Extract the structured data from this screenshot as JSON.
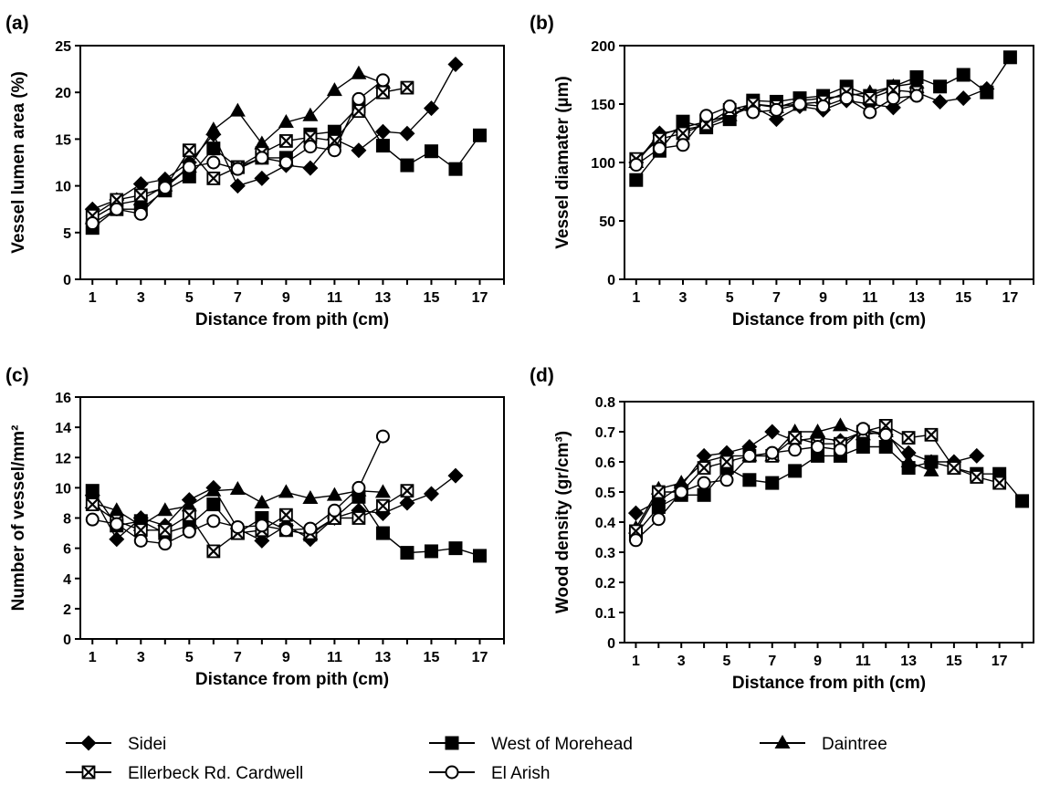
{
  "chart_data": [
    {
      "type": "line",
      "panel_label": "(a)",
      "xlabel": "Distance from pith (cm)",
      "ylabel": "Vessel lumen area (%)",
      "xlim": [
        0.5,
        18
      ],
      "ylim": [
        0,
        25
      ],
      "xticks": [
        1,
        3,
        5,
        7,
        9,
        11,
        13,
        15,
        17
      ],
      "yticks": [
        0,
        5,
        10,
        15,
        20,
        25
      ],
      "series": [
        {
          "name": "Sidei",
          "x": [
            1,
            2,
            3,
            4,
            5,
            6,
            7,
            8,
            9,
            10,
            11,
            12,
            13,
            14,
            15,
            16
          ],
          "y": [
            7.5,
            8.5,
            10.2,
            10.7,
            12.5,
            15.5,
            10.0,
            10.8,
            12.2,
            11.9,
            15.0,
            13.8,
            15.8,
            15.6,
            18.3,
            23.0
          ]
        },
        {
          "name": "West of Morehead",
          "x": [
            1,
            2,
            3,
            4,
            5,
            6,
            7,
            8,
            9,
            10,
            11,
            12,
            13,
            14,
            15,
            16,
            17
          ],
          "y": [
            5.5,
            7.5,
            7.5,
            9.5,
            11.0,
            14.0,
            12.0,
            13.0,
            13.0,
            15.5,
            15.8,
            18.5,
            14.3,
            12.2,
            13.7,
            11.8,
            15.4
          ]
        },
        {
          "name": "Daintree",
          "x": [
            1,
            2,
            3,
            4,
            5,
            6,
            7,
            8,
            9,
            10,
            11,
            12,
            13
          ],
          "y": [
            6.5,
            8.0,
            8.5,
            10.0,
            12.0,
            16.0,
            18.0,
            14.5,
            16.8,
            17.5,
            20.2,
            22.0,
            21.0
          ]
        },
        {
          "name": "Ellerbeck Rd. Cardwell",
          "x": [
            1,
            2,
            3,
            4,
            5,
            6,
            7,
            8,
            9,
            10,
            11,
            12,
            13,
            14
          ],
          "y": [
            6.8,
            8.5,
            9.0,
            9.8,
            13.8,
            10.8,
            12.0,
            13.5,
            14.8,
            15.2,
            14.8,
            18.0,
            20.0,
            20.5
          ]
        },
        {
          "name": "El Arish",
          "x": [
            1,
            2,
            3,
            4,
            5,
            6,
            7,
            8,
            9,
            10,
            11,
            12,
            13
          ],
          "y": [
            6.0,
            7.5,
            7.0,
            9.8,
            12.0,
            12.5,
            11.8,
            13.0,
            12.5,
            14.2,
            13.8,
            19.3,
            21.3
          ]
        }
      ]
    },
    {
      "type": "line",
      "panel_label": "(b)",
      "xlabel": "Distance from pith (cm)",
      "ylabel": "Vessel diamater (µm)",
      "xlim": [
        0.5,
        18
      ],
      "ylim": [
        0,
        200
      ],
      "xticks": [
        1,
        3,
        5,
        7,
        9,
        11,
        13,
        15,
        17
      ],
      "yticks": [
        0,
        50,
        100,
        150,
        200
      ],
      "series": [
        {
          "name": "Sidei",
          "x": [
            1,
            2,
            3,
            4,
            5,
            6,
            7,
            8,
            9,
            10,
            11,
            12,
            13,
            14,
            15,
            16
          ],
          "y": [
            100,
            125,
            128,
            132,
            140,
            148,
            137,
            148,
            145,
            153,
            150,
            147,
            160,
            152,
            155,
            163
          ]
        },
        {
          "name": "West of Morehead",
          "x": [
            1,
            2,
            3,
            4,
            5,
            6,
            7,
            8,
            9,
            10,
            11,
            12,
            13,
            14,
            15,
            16,
            17
          ],
          "y": [
            85,
            110,
            135,
            130,
            137,
            153,
            152,
            155,
            157,
            165,
            157,
            165,
            173,
            165,
            175,
            160,
            190
          ]
        },
        {
          "name": "Daintree",
          "x": [
            1,
            2,
            3,
            4,
            5,
            6,
            7,
            8,
            9,
            10,
            11,
            12,
            13
          ],
          "y": [
            100,
            123,
            130,
            135,
            140,
            150,
            147,
            153,
            155,
            157,
            160,
            165,
            168
          ]
        },
        {
          "name": "Ellerbeck Rd. Cardwell",
          "x": [
            1,
            2,
            3,
            4,
            5,
            6,
            7,
            8,
            9,
            10,
            11,
            12,
            13
          ],
          "y": [
            103,
            120,
            125,
            133,
            145,
            150,
            148,
            150,
            152,
            160,
            155,
            162,
            160
          ]
        },
        {
          "name": "El Arish",
          "x": [
            1,
            2,
            3,
            4,
            5,
            6,
            7,
            8,
            9,
            10,
            11,
            12,
            13
          ],
          "y": [
            98,
            112,
            115,
            140,
            148,
            143,
            145,
            150,
            148,
            155,
            143,
            155,
            157
          ]
        }
      ]
    },
    {
      "type": "line",
      "panel_label": "(c)",
      "xlabel": "Distance from pith (cm)",
      "ylabel": "Number of vessel/mm²",
      "xlim": [
        0.5,
        18
      ],
      "ylim": [
        0,
        16
      ],
      "xticks": [
        1,
        3,
        5,
        7,
        9,
        11,
        13,
        15,
        17
      ],
      "yticks": [
        0,
        2,
        4,
        6,
        8,
        10,
        12,
        14,
        16
      ],
      "series": [
        {
          "name": "Sidei",
          "x": [
            1,
            2,
            3,
            4,
            5,
            6,
            7,
            8,
            9,
            10,
            11,
            12,
            13,
            14,
            15,
            16
          ],
          "y": [
            9.5,
            6.6,
            8.0,
            7.5,
            9.2,
            10.0,
            7.3,
            6.5,
            7.5,
            6.6,
            8.0,
            8.5,
            8.3,
            9.0,
            9.6,
            10.8
          ]
        },
        {
          "name": "West of Morehead",
          "x": [
            1,
            2,
            3,
            4,
            5,
            6,
            7,
            8,
            9,
            10,
            11,
            12,
            13,
            14,
            15,
            16,
            17
          ],
          "y": [
            9.8,
            7.5,
            7.8,
            7.0,
            7.5,
            8.9,
            7.0,
            8.0,
            7.2,
            6.9,
            8.0,
            9.4,
            7.0,
            5.7,
            5.8,
            6.0,
            5.5
          ]
        },
        {
          "name": "Daintree",
          "x": [
            1,
            2,
            3,
            4,
            5,
            6,
            7,
            8,
            9,
            10,
            11,
            12,
            13
          ],
          "y": [
            9.0,
            8.5,
            7.5,
            8.5,
            8.8,
            9.8,
            9.9,
            9.0,
            9.7,
            9.3,
            9.5,
            9.8,
            9.7
          ]
        },
        {
          "name": "Ellerbeck Rd. Cardwell",
          "x": [
            1,
            2,
            3,
            4,
            5,
            6,
            7,
            8,
            9,
            10,
            11,
            12,
            13,
            14
          ],
          "y": [
            8.9,
            7.8,
            7.2,
            7.2,
            8.2,
            5.8,
            7.0,
            7.2,
            8.2,
            7.0,
            8.0,
            8.0,
            8.8,
            9.8
          ]
        },
        {
          "name": "El Arish",
          "x": [
            1,
            2,
            3,
            4,
            5,
            6,
            7,
            8,
            9,
            10,
            11,
            12,
            13
          ],
          "y": [
            7.9,
            7.6,
            6.5,
            6.3,
            7.1,
            7.8,
            7.4,
            7.5,
            7.2,
            7.3,
            8.5,
            10.0,
            13.4
          ]
        }
      ]
    },
    {
      "type": "line",
      "panel_label": "(d)",
      "xlabel": "Distance from pith (cm)",
      "ylabel": "Wood density (gr/cm³)",
      "xlim": [
        0.5,
        18.5
      ],
      "ylim": [
        0,
        0.8
      ],
      "xticks": [
        1,
        3,
        5,
        7,
        9,
        11,
        13,
        15,
        17
      ],
      "yticks": [
        0,
        0.1,
        0.2,
        0.3,
        0.4,
        0.5,
        0.6,
        0.7,
        0.8
      ],
      "series": [
        {
          "name": "Sidei",
          "x": [
            1,
            2,
            3,
            4,
            5,
            6,
            7,
            8,
            9,
            10,
            11,
            12,
            13,
            14,
            15,
            16
          ],
          "y": [
            0.43,
            0.47,
            0.52,
            0.62,
            0.63,
            0.65,
            0.7,
            0.67,
            0.68,
            0.67,
            0.7,
            0.69,
            0.63,
            0.6,
            0.6,
            0.62
          ]
        },
        {
          "name": "West of Morehead",
          "x": [
            1,
            2,
            3,
            4,
            5,
            6,
            7,
            8,
            9,
            10,
            11,
            12,
            13,
            14,
            15,
            16,
            17,
            18
          ],
          "y": [
            0.36,
            0.45,
            0.49,
            0.49,
            0.58,
            0.54,
            0.53,
            0.57,
            0.62,
            0.62,
            0.65,
            0.65,
            0.58,
            0.6,
            0.58,
            0.56,
            0.56,
            0.47
          ]
        },
        {
          "name": "Daintree",
          "x": [
            1,
            2,
            3,
            4,
            5,
            6,
            7,
            8,
            9,
            10,
            11,
            12,
            13,
            14
          ],
          "y": [
            0.38,
            0.51,
            0.53,
            0.6,
            0.62,
            0.62,
            0.62,
            0.7,
            0.7,
            0.72,
            0.69,
            0.7,
            0.6,
            0.57
          ]
        },
        {
          "name": "Ellerbeck Rd. Cardwell",
          "x": [
            1,
            2,
            3,
            4,
            5,
            6,
            7,
            8,
            9,
            10,
            11,
            12,
            13,
            14,
            15,
            16,
            17
          ],
          "y": [
            0.37,
            0.5,
            0.5,
            0.58,
            0.6,
            0.62,
            0.62,
            0.68,
            0.66,
            0.66,
            0.7,
            0.72,
            0.68,
            0.69,
            0.58,
            0.55,
            0.53
          ]
        },
        {
          "name": "El Arish",
          "x": [
            1,
            2,
            3,
            4,
            5,
            6,
            7,
            8,
            9,
            10,
            11,
            12
          ],
          "y": [
            0.34,
            0.41,
            0.5,
            0.53,
            0.54,
            0.62,
            0.63,
            0.64,
            0.65,
            0.64,
            0.71,
            0.69
          ]
        }
      ]
    }
  ],
  "legend": [
    {
      "name": "Sidei",
      "marker": "diamond"
    },
    {
      "name": "West of Morehead",
      "marker": "square"
    },
    {
      "name": "Daintree",
      "marker": "triangle"
    },
    {
      "name": "Ellerbeck Rd. Cardwell",
      "marker": "crossbox"
    },
    {
      "name": "El Arish",
      "marker": "circle"
    }
  ],
  "colors": {
    "ink": "#000000",
    "background": "#ffffff"
  }
}
